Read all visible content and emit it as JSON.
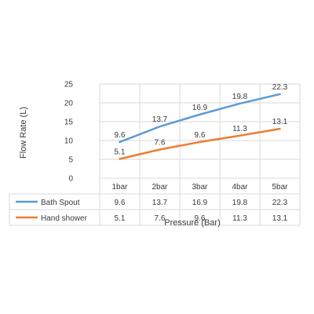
{
  "chart_data": {
    "type": "line",
    "categories": [
      "1bar",
      "2bar",
      "3bar",
      "4bar",
      "5bar"
    ],
    "series": [
      {
        "name": "Bath Spout",
        "values": [
          9.6,
          13.7,
          16.9,
          19.8,
          22.3
        ],
        "color": "#5b9bd5"
      },
      {
        "name": "Hand shower",
        "values": [
          5.1,
          7.6,
          9.6,
          11.3,
          13.1
        ],
        "color": "#ed7d31"
      }
    ],
    "ylabel": "Flow Rate (L)",
    "xlabel": "Pressure (Bar)",
    "ylim": [
      0,
      25
    ],
    "yticks": [
      0,
      5,
      10,
      15,
      20,
      25
    ],
    "grid": true,
    "data_table": true,
    "gridline_color": "#d9d9d9"
  }
}
